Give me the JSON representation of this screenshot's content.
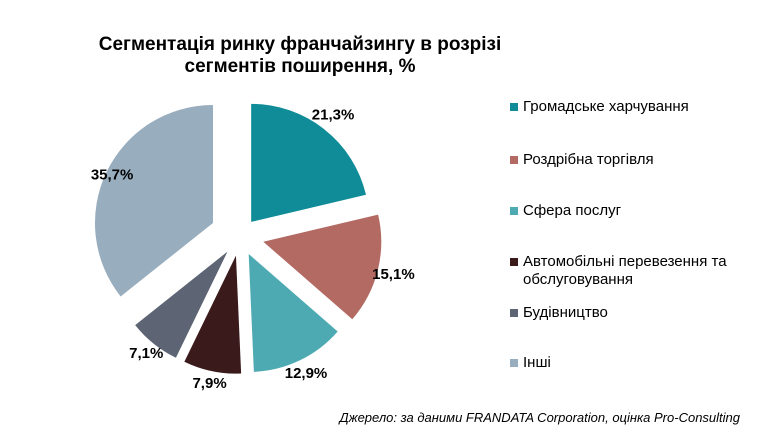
{
  "chart_data": {
    "type": "pie",
    "title": "Сегментація ринку франчайзингу в розрізі сегментів поширення, %",
    "exploded": true,
    "legend_position": "right",
    "slices": [
      {
        "label": "Громадське харчування",
        "value": 21.3,
        "display": "21,3%",
        "color": "#0f8c97"
      },
      {
        "label": "Роздрібна торгівля",
        "value": 15.1,
        "display": "15,1%",
        "color": "#b36a63"
      },
      {
        "label": "Сфера послуг",
        "value": 12.9,
        "display": "12,9%",
        "color": "#4daab2"
      },
      {
        "label": "Автомобільні перевезення та обслуговування",
        "value": 7.9,
        "display": "7,9%",
        "color": "#3b1a1c"
      },
      {
        "label": "Будівництво",
        "value": 7.1,
        "display": "7,1%",
        "color": "#5d6474"
      },
      {
        "label": "Інші",
        "value": 35.7,
        "display": "35,7%",
        "color": "#98adbe"
      }
    ]
  },
  "title_line1": "Сегментація ринку франчайзингу в розрізі",
  "title_line2": "сегментів поширення, %",
  "legend_labels": [
    "Громадське харчування",
    "Роздрібна торгівля",
    "Сфера послуг",
    "Автомобільні перевезення та обслуговування",
    "Будівництво",
    "Інші"
  ],
  "source": "Джерело: за даними FRANDATA Corporation, оцінка Pro-Consulting"
}
